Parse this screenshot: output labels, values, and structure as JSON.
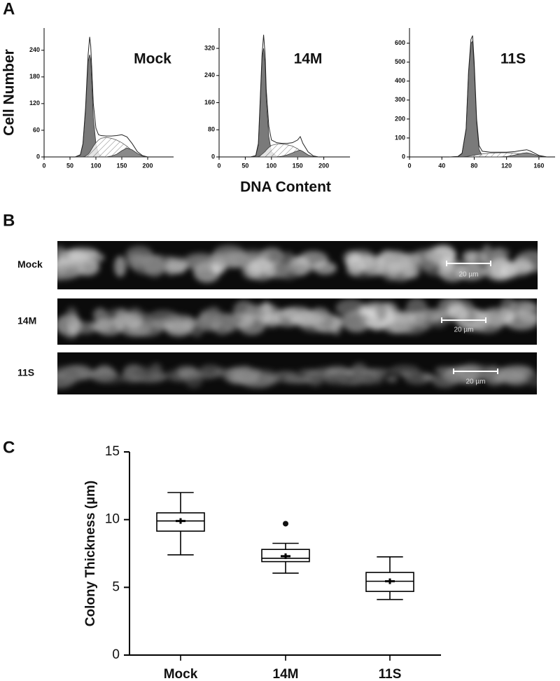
{
  "panels": [
    "A",
    "B",
    "C"
  ],
  "micrographs": [
    {
      "label": "Mock",
      "scale_label": "20 µm"
    },
    {
      "label": "14M",
      "scale_label": "20 µm"
    },
    {
      "label": "11S",
      "scale_label": "20 µm"
    }
  ],
  "chart_data": [
    {
      "type": "area",
      "title": "Mock",
      "ylabel": "Cell Number",
      "x": [
        60,
        70,
        75,
        80,
        85,
        88,
        90,
        92,
        95,
        100,
        105,
        110,
        120,
        130,
        140,
        150,
        160,
        170,
        180,
        190,
        200
      ],
      "values": [
        0,
        5,
        30,
        110,
        230,
        270,
        250,
        200,
        120,
        65,
        50,
        48,
        47,
        47,
        48,
        50,
        45,
        30,
        12,
        3,
        0
      ],
      "components": [
        [
          0,
          4,
          28,
          105,
          215,
          230,
          220,
          170,
          90,
          30,
          8,
          2,
          0,
          0,
          0,
          0,
          0,
          0,
          0,
          0,
          0
        ],
        [
          0,
          0,
          0,
          2,
          6,
          10,
          14,
          18,
          24,
          32,
          38,
          42,
          44,
          42,
          38,
          32,
          24,
          14,
          6,
          2,
          0
        ],
        [
          0,
          0,
          0,
          0,
          0,
          0,
          0,
          0,
          0,
          0,
          0,
          0,
          0,
          2,
          6,
          14,
          20,
          16,
          8,
          2,
          0
        ]
      ],
      "xlim": [
        0,
        250
      ],
      "xticks": [
        0,
        50,
        100,
        150,
        200
      ],
      "ylim": [
        0,
        290
      ],
      "yticks": [
        0,
        60,
        120,
        180,
        240
      ]
    },
    {
      "type": "area",
      "title": "14M",
      "xlabel": "DNA Content",
      "x": [
        60,
        70,
        75,
        78,
        82,
        85,
        88,
        90,
        95,
        100,
        110,
        120,
        130,
        140,
        150,
        155,
        160,
        170,
        180,
        190
      ],
      "values": [
        0,
        4,
        40,
        150,
        300,
        360,
        300,
        200,
        90,
        50,
        42,
        40,
        40,
        42,
        50,
        60,
        40,
        15,
        3,
        0
      ],
      "components": [
        [
          0,
          3,
          35,
          140,
          290,
          320,
          270,
          170,
          60,
          15,
          2,
          0,
          0,
          0,
          0,
          0,
          0,
          0,
          0,
          0
        ],
        [
          0,
          0,
          1,
          3,
          8,
          12,
          16,
          20,
          28,
          34,
          38,
          38,
          36,
          32,
          24,
          18,
          12,
          4,
          1,
          0
        ],
        [
          0,
          0,
          0,
          0,
          0,
          0,
          0,
          0,
          0,
          0,
          0,
          2,
          6,
          12,
          18,
          20,
          16,
          6,
          1,
          0
        ]
      ],
      "xlim": [
        0,
        250
      ],
      "xticks": [
        0,
        50,
        100,
        150,
        200
      ],
      "ylim": [
        0,
        380
      ],
      "yticks": [
        0,
        80,
        160,
        240,
        320
      ]
    },
    {
      "type": "area",
      "title": "11S",
      "x": [
        50,
        60,
        65,
        70,
        73,
        76,
        78,
        80,
        83,
        86,
        90,
        100,
        110,
        120,
        130,
        140,
        145,
        150,
        160,
        170
      ],
      "values": [
        0,
        3,
        20,
        150,
        450,
        620,
        640,
        500,
        200,
        60,
        30,
        25,
        25,
        25,
        28,
        35,
        38,
        30,
        8,
        0
      ],
      "components": [
        [
          0,
          2,
          18,
          145,
          440,
          600,
          610,
          470,
          180,
          40,
          5,
          0,
          0,
          0,
          0,
          0,
          0,
          0,
          0,
          0
        ],
        [
          0,
          0,
          0,
          2,
          4,
          6,
          8,
          10,
          12,
          14,
          16,
          20,
          22,
          22,
          20,
          14,
          10,
          6,
          2,
          0
        ],
        [
          0,
          0,
          0,
          0,
          0,
          0,
          0,
          0,
          0,
          0,
          0,
          0,
          0,
          2,
          10,
          20,
          22,
          18,
          4,
          0
        ]
      ],
      "xlim": [
        0,
        180
      ],
      "xticks": [
        0,
        40,
        80,
        120,
        160
      ],
      "ylim": [
        0,
        680
      ],
      "yticks": [
        0,
        100,
        200,
        300,
        400,
        500,
        600
      ]
    },
    {
      "type": "box",
      "ylabel": "Colony Thickness (µm)",
      "categories": [
        "Mock",
        "14M",
        "11S"
      ],
      "boxes": [
        {
          "whisker_low": 7.4,
          "q1": 9.15,
          "median": 9.9,
          "q3": 10.5,
          "whisker_high": 12.0,
          "mean": 9.9,
          "outliers": []
        },
        {
          "whisker_low": 6.05,
          "q1": 6.9,
          "median": 7.15,
          "q3": 7.8,
          "whisker_high": 8.25,
          "mean": 7.3,
          "outliers": [
            9.7
          ]
        },
        {
          "whisker_low": 4.1,
          "q1": 4.7,
          "median": 5.45,
          "q3": 6.1,
          "whisker_high": 7.25,
          "mean": 5.45,
          "outliers": []
        }
      ],
      "ylim": [
        0,
        15
      ],
      "yticks": [
        0,
        5,
        10,
        15
      ]
    }
  ]
}
